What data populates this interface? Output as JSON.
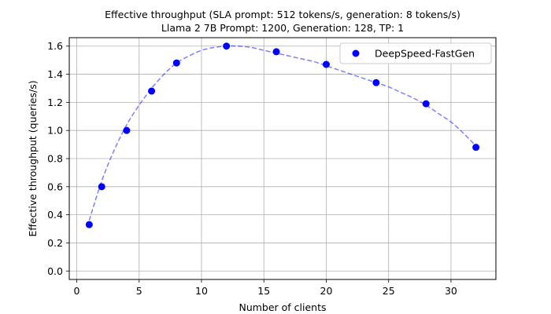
{
  "chart_data": {
    "type": "scatter",
    "title": "Effective throughput (SLA prompt: 512 tokens/s, generation: 8 tokens/s)",
    "subtitle": "Llama 2 7B Prompt: 1200, Generation: 128, TP: 1",
    "xlabel": "Number of clients",
    "ylabel": "Effective throughput (queries/s)",
    "xlim": [
      -0.6,
      33.6
    ],
    "ylim": [
      -0.06,
      1.66
    ],
    "xticks": [
      0,
      5,
      10,
      15,
      20,
      25,
      30
    ],
    "xtick_labels": [
      "0",
      "5",
      "10",
      "15",
      "20",
      "25",
      "30"
    ],
    "yticks": [
      0.0,
      0.2,
      0.4,
      0.6,
      0.8,
      1.0,
      1.2,
      1.4,
      1.6
    ],
    "ytick_labels": [
      "0.0",
      "0.2",
      "0.4",
      "0.6",
      "0.8",
      "1.0",
      "1.2",
      "1.4",
      "1.6"
    ],
    "grid": true,
    "legend_position": "top-right",
    "series": [
      {
        "name": "DeepSpeed-FastGen",
        "color": "#0000ff",
        "x": [
          1,
          2,
          4,
          6,
          8,
          12,
          16,
          20,
          24,
          28,
          32
        ],
        "y": [
          0.33,
          0.6,
          1.0,
          1.28,
          1.48,
          1.6,
          1.56,
          1.47,
          1.34,
          1.19,
          0.88
        ]
      }
    ],
    "fit_curve": {
      "color": "#0000ff",
      "style": "dashed",
      "x": [
        1,
        2,
        3,
        4,
        5,
        6,
        7,
        8,
        9,
        10,
        11,
        12,
        13,
        14,
        15,
        16,
        17,
        18,
        19,
        20,
        21,
        22,
        23,
        24,
        25,
        26,
        27,
        28,
        29,
        30,
        31,
        32
      ],
      "y": [
        0.36,
        0.64,
        0.86,
        1.04,
        1.18,
        1.3,
        1.4,
        1.48,
        1.53,
        1.57,
        1.59,
        1.6,
        1.6,
        1.59,
        1.57,
        1.55,
        1.53,
        1.51,
        1.49,
        1.46,
        1.43,
        1.4,
        1.37,
        1.34,
        1.31,
        1.27,
        1.23,
        1.18,
        1.12,
        1.06,
        0.98,
        0.89
      ]
    }
  }
}
